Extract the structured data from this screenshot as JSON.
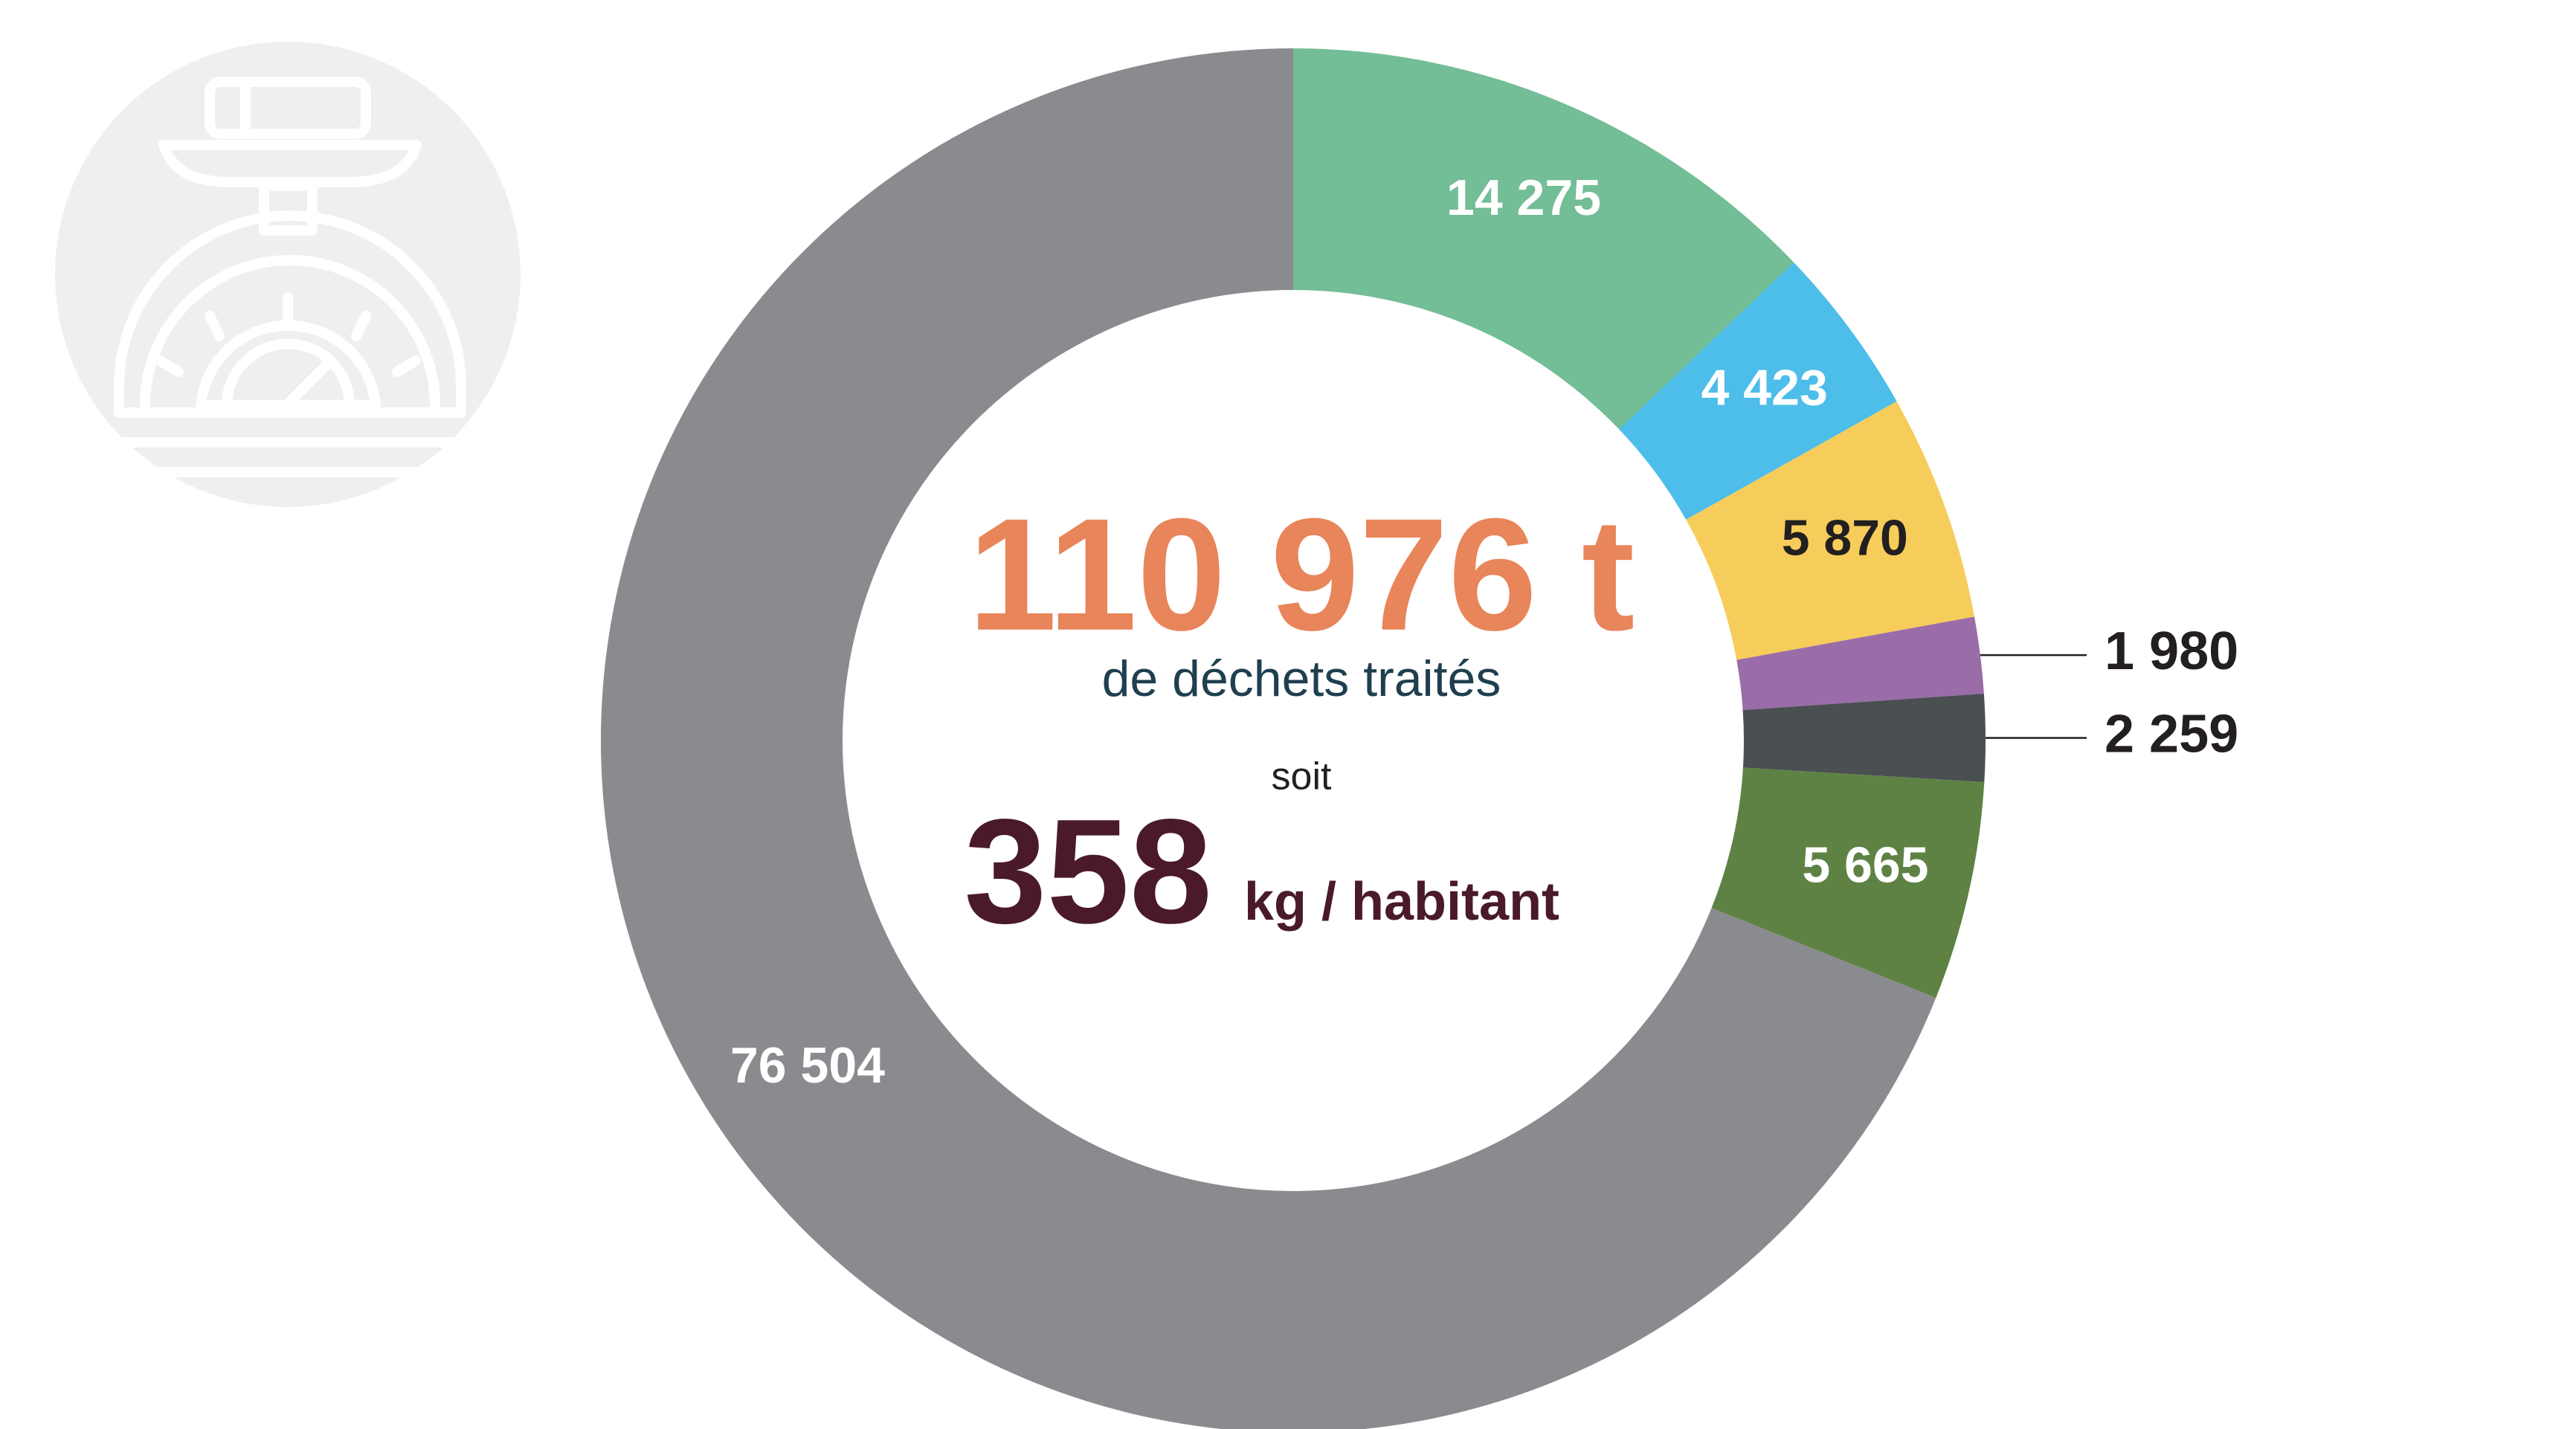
{
  "chart_data": {
    "type": "donut",
    "total_label": "110 976 t",
    "total_caption": "de déchets traités",
    "connector": "soit",
    "per_capita": 358,
    "per_capita_unit": "kg / habitant",
    "values": [
      14275,
      4423,
      5870,
      1980,
      2259,
      5665,
      76504
    ],
    "value_labels": [
      "14 275",
      "4 423",
      "5 870",
      "1 980",
      "2 259",
      "5 665",
      "76 504"
    ],
    "colors": [
      "#73bd97",
      "#4dbde9",
      "#f6cd5a",
      "#9a6ca8",
      "#4a4f52",
      "#5e8244",
      "#8a8b8e"
    ],
    "label_colors": [
      "#ffffff",
      "#ffffff",
      "#231f20",
      "#231f20",
      "#231f20",
      "#ffffff",
      "#ffffff"
    ]
  }
}
